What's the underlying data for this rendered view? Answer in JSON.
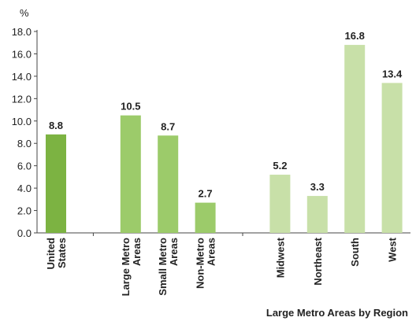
{
  "chart_data": {
    "type": "bar",
    "y_unit": "%",
    "x_note": "Large Metro Areas by Region",
    "categories": [
      "United\nStates",
      "Large Metro\nAreas",
      "Small Metro\nAreas",
      "Non-Metro\nAreas",
      "Midwest",
      "Northeast",
      "South",
      "West"
    ],
    "values": [
      8.8,
      10.5,
      8.7,
      2.7,
      5.2,
      3.3,
      16.8,
      13.4
    ],
    "value_labels": [
      "8.8",
      "10.5",
      "8.7",
      "2.7",
      "5.2",
      "3.3",
      "16.8",
      "13.4"
    ],
    "colors": [
      "#7cb342",
      "#9ccb6a",
      "#9ccb6a",
      "#9ccb6a",
      "#c8e0a8",
      "#c8e0a8",
      "#c8e0a8",
      "#c8e0a8"
    ],
    "ylim": [
      0,
      18
    ],
    "yticks": [
      {
        "value": 0,
        "label": "0.0"
      },
      {
        "value": 2,
        "label": "2.0"
      },
      {
        "value": 4,
        "label": "4.0"
      },
      {
        "value": 6,
        "label": "6.0"
      },
      {
        "value": 8,
        "label": "8.0"
      },
      {
        "value": 10,
        "label": "10.0"
      },
      {
        "value": 12,
        "label": "12.0"
      },
      {
        "value": 14,
        "label": "14.0"
      },
      {
        "value": 16,
        "label": "16.0"
      },
      {
        "value": 18,
        "label": "18.0"
      }
    ],
    "grid": false
  }
}
